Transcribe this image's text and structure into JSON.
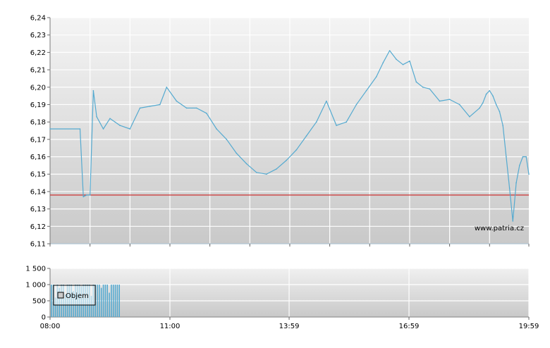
{
  "chart_data": [
    {
      "type": "line",
      "title": "",
      "xlabel": "",
      "ylabel": "",
      "ylim": [
        6.11,
        6.24
      ],
      "yticks": [
        "6,11",
        "6,12",
        "6,13",
        "6,14",
        "6,15",
        "6,16",
        "6,17",
        "6,18",
        "6,19",
        "6,20",
        "6,21",
        "6,22",
        "6,23",
        "6,24"
      ],
      "xlim": [
        "08:00",
        "19:59"
      ],
      "grid": true,
      "watermark": "www.patria.cz",
      "reference_line": {
        "value": 6.138,
        "color": "#cc3333"
      },
      "series": [
        {
          "color": "#55aad0",
          "x": [
            "08:00",
            "08:45",
            "08:50",
            "08:55",
            "09:00",
            "09:05",
            "09:10",
            "09:20",
            "09:30",
            "09:45",
            "10:00",
            "10:15",
            "10:30",
            "10:45",
            "10:55",
            "11:10",
            "11:25",
            "11:40",
            "11:55",
            "12:10",
            "12:25",
            "12:40",
            "12:55",
            "13:10",
            "13:25",
            "13:40",
            "13:55",
            "14:10",
            "14:25",
            "14:40",
            "14:55",
            "15:10",
            "15:25",
            "15:40",
            "15:55",
            "16:10",
            "16:20",
            "16:30",
            "16:40",
            "16:50",
            "17:00",
            "17:10",
            "17:20",
            "17:30",
            "17:45",
            "18:00",
            "18:15",
            "18:30",
            "18:45",
            "18:50",
            "18:55",
            "19:00",
            "19:05",
            "19:10",
            "19:15",
            "19:20",
            "19:25",
            "19:30",
            "19:35",
            "19:40",
            "19:45",
            "19:50",
            "19:55",
            "19:59"
          ],
          "y": [
            6.176,
            6.176,
            6.137,
            6.138,
            6.138,
            6.198,
            6.183,
            6.176,
            6.182,
            6.178,
            6.176,
            6.188,
            6.189,
            6.19,
            6.2,
            6.192,
            6.188,
            6.188,
            6.185,
            6.176,
            6.17,
            6.162,
            6.156,
            6.151,
            6.15,
            6.153,
            6.158,
            6.164,
            6.172,
            6.18,
            6.192,
            6.178,
            6.18,
            6.19,
            6.198,
            6.206,
            6.214,
            6.221,
            6.216,
            6.213,
            6.215,
            6.203,
            6.2,
            6.199,
            6.192,
            6.193,
            6.19,
            6.183,
            6.188,
            6.191,
            6.196,
            6.198,
            6.195,
            6.19,
            6.186,
            6.178,
            6.16,
            6.142,
            6.123,
            6.145,
            6.155,
            6.16,
            6.16,
            6.15
          ]
        }
      ]
    },
    {
      "type": "bar",
      "title": "",
      "xlabel": "",
      "ylabel": "",
      "ylim": [
        0,
        1500
      ],
      "yticks": [
        "1 500",
        "1 000",
        "500",
        "0"
      ],
      "xticks": [
        "08:00",
        "11:00",
        "13:59",
        "16:59",
        "19:59"
      ],
      "grid": true,
      "legend": {
        "entries": [
          "Objem"
        ],
        "placement": "top-left"
      },
      "series": [
        {
          "name": "Objem",
          "color": "#55aad0",
          "x": [
            "08:02",
            "08:05",
            "08:08",
            "08:11",
            "08:14",
            "08:17",
            "08:20",
            "08:23",
            "08:26",
            "08:29",
            "08:32",
            "08:35",
            "08:38",
            "08:41",
            "08:44",
            "08:47",
            "08:50",
            "08:53",
            "08:56",
            "08:59",
            "09:02",
            "09:05",
            "09:08",
            "09:11",
            "09:14",
            "09:17",
            "09:20",
            "09:23",
            "09:26",
            "09:29",
            "09:32",
            "09:35",
            "09:38",
            "09:41",
            "09:44"
          ],
          "values": [
            1000,
            1000,
            600,
            1000,
            900,
            1000,
            1000,
            700,
            1000,
            1000,
            1000,
            800,
            1000,
            1000,
            1000,
            950,
            1000,
            1000,
            1000,
            1000,
            650,
            1000,
            1000,
            1000,
            1000,
            900,
            1000,
            1000,
            1000,
            750,
            1000,
            1000,
            1000,
            1000,
            1000
          ]
        }
      ]
    }
  ]
}
